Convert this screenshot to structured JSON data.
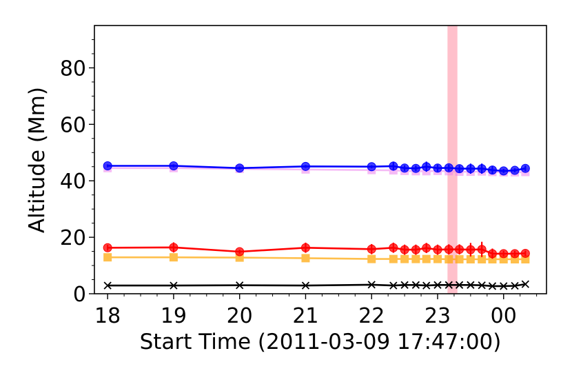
{
  "chart_data": {
    "type": "line",
    "xlabel": "Start Time (2011-03-09 17:47:00)",
    "ylabel": "Altitude (Mm)",
    "xlim": [
      -0.2,
      6.65
    ],
    "ylim": [
      0,
      95
    ],
    "x_ticks": [
      {
        "value": 0,
        "label": "18"
      },
      {
        "value": 1,
        "label": "19"
      },
      {
        "value": 2,
        "label": "20"
      },
      {
        "value": 3,
        "label": "21"
      },
      {
        "value": 4,
        "label": "22"
      },
      {
        "value": 5,
        "label": "23"
      },
      {
        "value": 6,
        "label": "00"
      }
    ],
    "y_ticks": [
      {
        "value": 0,
        "label": "0"
      },
      {
        "value": 20,
        "label": "20"
      },
      {
        "value": 40,
        "label": "40"
      },
      {
        "value": 60,
        "label": "60"
      },
      {
        "value": 80,
        "label": "80"
      }
    ],
    "highlight": {
      "from": 5.15,
      "to": 5.3,
      "color": "#ffc0cb"
    },
    "x": [
      0,
      1,
      2,
      3,
      4,
      4.33,
      4.5,
      4.67,
      4.83,
      5.0,
      5.17,
      5.33,
      5.5,
      5.67,
      5.83,
      6.0,
      6.17,
      6.33
    ],
    "series": [
      {
        "color": "#ee82ee",
        "marker": "square",
        "alpha": 0.55,
        "values": [
          44.5,
          44.5,
          44.2,
          44.0,
          43.8,
          43.7,
          43.5,
          43.4,
          43.4,
          43.5,
          43.4,
          43.2,
          43.2,
          43.3,
          43.1,
          43.0,
          43.0,
          43.1
        ]
      },
      {
        "color": "#0000ff",
        "marker": "circle",
        "values": [
          45.3,
          45.3,
          44.5,
          45.1,
          45.0,
          45.2,
          44.5,
          44.4,
          45.0,
          44.5,
          44.6,
          44.3,
          44.3,
          44.3,
          43.8,
          43.5,
          43.7,
          44.4
        ],
        "errors": [
          0.5,
          0.5,
          0.5,
          0.5,
          0.5,
          1.6,
          1.0,
          1.0,
          1.8,
          1.2,
          1.1,
          1.2,
          1.8,
          1.8,
          1.5,
          0.7,
          0.7,
          1.0
        ]
      },
      {
        "color": "#ffa500",
        "marker": "square",
        "alpha": 0.7,
        "values": [
          12.9,
          12.9,
          12.8,
          12.6,
          12.3,
          12.3,
          12.3,
          12.3,
          12.3,
          12.3,
          12.2,
          12.2,
          12.2,
          12.2,
          12.2,
          12.2,
          12.2,
          12.2
        ]
      },
      {
        "color": "#ff0000",
        "marker": "circle",
        "values": [
          16.3,
          16.4,
          14.9,
          16.3,
          15.8,
          16.3,
          15.6,
          15.6,
          16.2,
          15.6,
          15.7,
          15.7,
          15.6,
          15.7,
          14.2,
          14.2,
          14.2,
          14.3
        ],
        "errors": [
          1.0,
          1.8,
          0.7,
          1.8,
          1.8,
          1.8,
          1.8,
          1.8,
          1.8,
          1.8,
          1.8,
          1.8,
          2.4,
          2.7,
          1.8,
          1.0,
          1.0,
          1.0
        ]
      },
      {
        "color": "#000000",
        "marker": "x",
        "values": [
          2.9,
          2.9,
          3.0,
          2.9,
          3.2,
          2.9,
          3.1,
          3.1,
          2.9,
          3.1,
          3.1,
          3.1,
          3.1,
          3.0,
          2.7,
          2.7,
          2.8,
          3.4
        ]
      }
    ]
  }
}
